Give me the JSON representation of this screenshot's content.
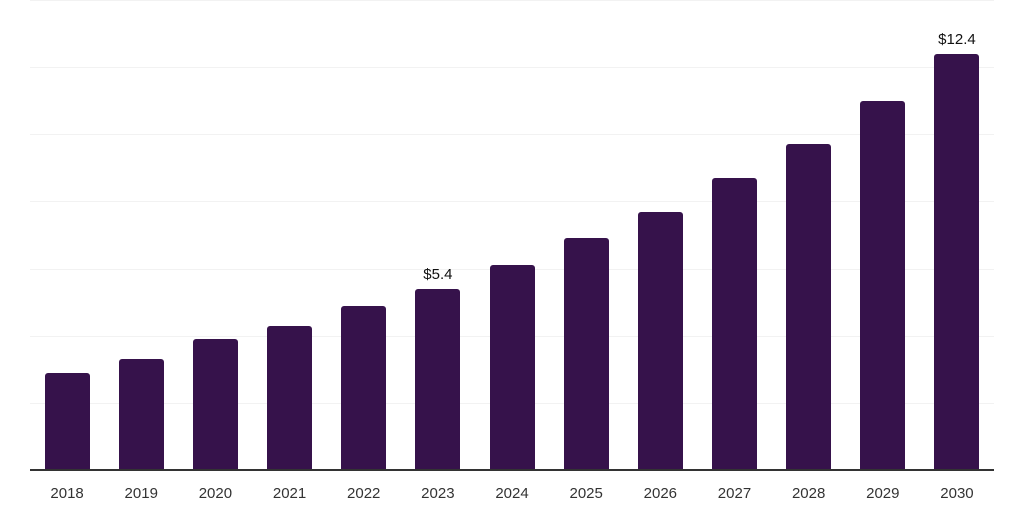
{
  "chart_data": {
    "type": "bar",
    "title": "",
    "xlabel": "",
    "ylabel": "",
    "categories": [
      "2018",
      "2019",
      "2020",
      "2021",
      "2022",
      "2023",
      "2024",
      "2025",
      "2026",
      "2027",
      "2028",
      "2029",
      "2030"
    ],
    "values": [
      2.9,
      3.3,
      3.9,
      4.3,
      4.9,
      5.4,
      6.1,
      6.9,
      7.7,
      8.7,
      9.7,
      11.0,
      12.4
    ],
    "bar_labels": [
      null,
      null,
      null,
      null,
      null,
      "$5.4",
      null,
      null,
      null,
      null,
      null,
      null,
      "$12.4"
    ],
    "ylim": [
      0,
      14
    ],
    "gridline_step": 2,
    "grid": true,
    "legend": "none",
    "colors": {
      "bar": "#36124B",
      "axis_line": "#333333",
      "gridline": "#f2f2f2",
      "tick_label": "#333333",
      "value_label": "#111111",
      "background": "#ffffff"
    }
  }
}
